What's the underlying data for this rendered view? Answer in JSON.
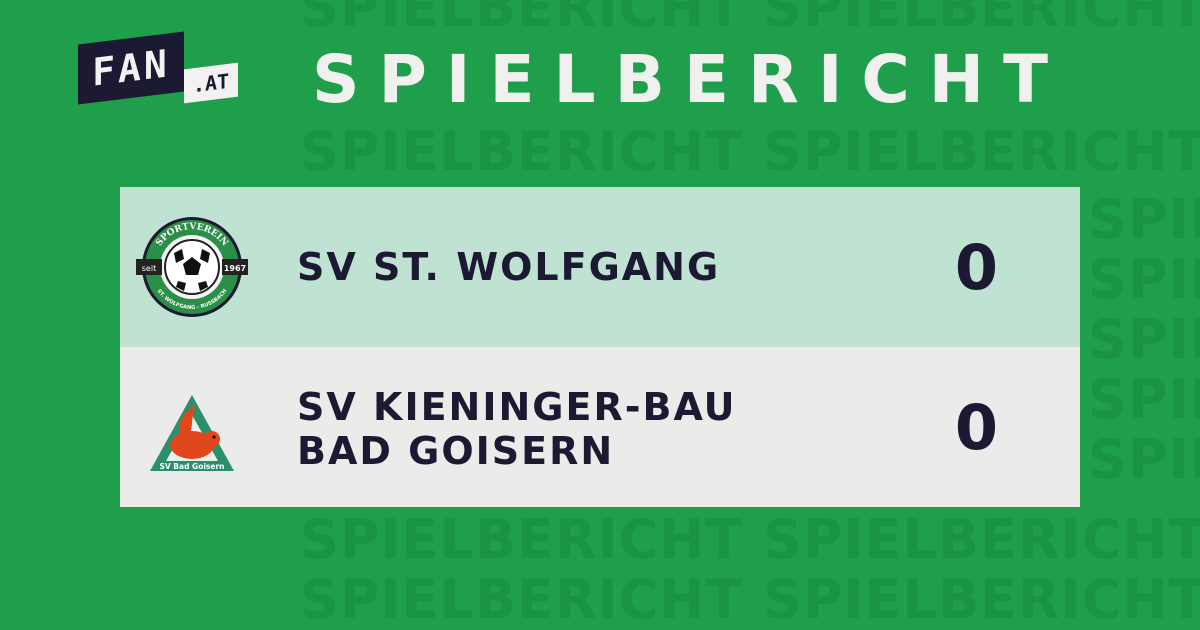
{
  "watermark": "SPIELBERICHT",
  "logo": {
    "brand": "FAN",
    "suffix": ".AT"
  },
  "title": "SPIELBERICHT",
  "match": {
    "home": {
      "name": "SV ST. WOLFGANG",
      "score": "0",
      "crest_text_top": "SPORTVEREIN",
      "crest_text_left": "seit",
      "crest_text_right": "1967",
      "crest_text_bottom": "ST. WOLFGANG - RUSSBACH"
    },
    "away": {
      "name_line1": "SV KIENINGER-BAU",
      "name_line2": "BAD GOISERN",
      "score": "0",
      "crest_text": "SV Bad Goisern"
    }
  },
  "colors": {
    "background": "#1f9f4b",
    "text": "#1c1a33",
    "home_row": "#bfe2d2",
    "away_row": "#ebebea"
  }
}
